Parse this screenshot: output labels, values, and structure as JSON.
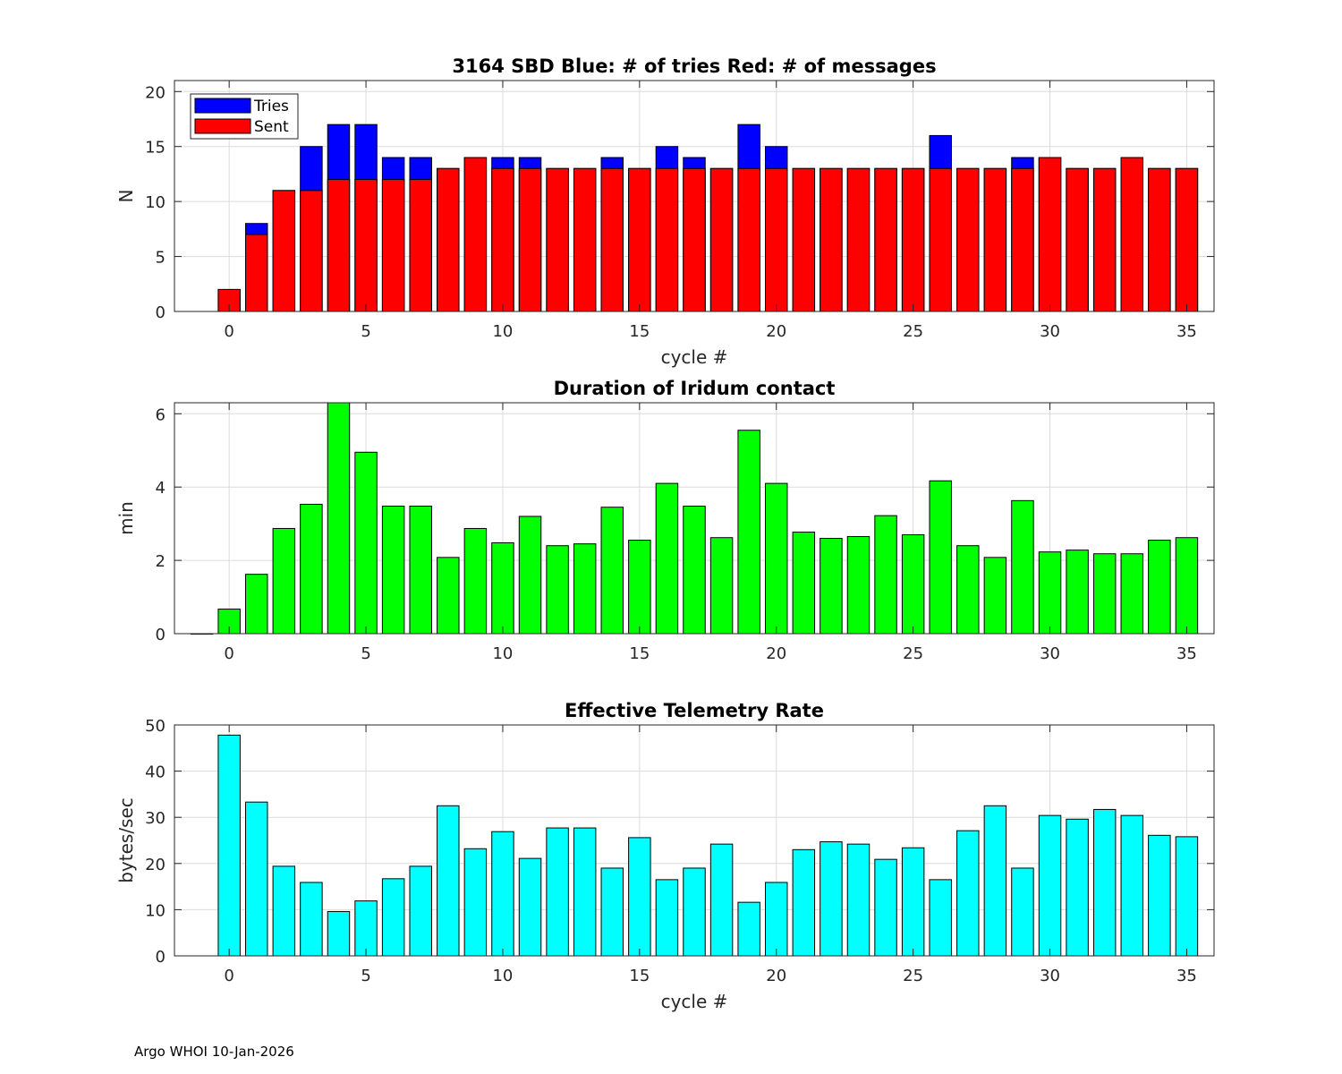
{
  "footer": "Argo WHOI 10-Jan-2026",
  "chart_data": [
    {
      "type": "bar",
      "stacked_overlay": true,
      "title": "3164 SBD  Blue: # of tries   Red: # of messages",
      "xlabel": "cycle #",
      "ylabel": "N",
      "xlim": [
        -2,
        36
      ],
      "ylim": [
        0,
        21
      ],
      "xticks": [
        0,
        5,
        10,
        15,
        20,
        25,
        30,
        35
      ],
      "yticks": [
        0,
        5,
        10,
        15,
        20
      ],
      "grid": true,
      "legend": "top-left",
      "x": [
        0,
        1,
        2,
        3,
        4,
        5,
        6,
        7,
        8,
        9,
        10,
        11,
        12,
        13,
        14,
        15,
        16,
        17,
        18,
        19,
        20,
        21,
        22,
        23,
        24,
        25,
        26,
        27,
        28,
        29,
        30,
        31,
        32,
        33,
        34,
        35
      ],
      "series": [
        {
          "name": "Tries",
          "color": "#0000ff",
          "values": [
            2,
            8,
            11,
            15,
            17,
            17,
            14,
            14,
            13,
            14,
            14,
            14,
            13,
            13,
            14,
            13,
            15,
            14,
            13,
            17,
            15,
            13,
            13,
            13,
            13,
            13,
            16,
            13,
            13,
            14,
            14,
            13,
            13,
            14,
            13,
            13
          ]
        },
        {
          "name": "Sent",
          "color": "#ff0000",
          "values": [
            2,
            7,
            11,
            11,
            12,
            12,
            12,
            12,
            13,
            14,
            13,
            13,
            13,
            13,
            13,
            13,
            13,
            13,
            13,
            13,
            13,
            13,
            13,
            13,
            13,
            13,
            13,
            13,
            13,
            13,
            14,
            13,
            13,
            14,
            13,
            13
          ]
        }
      ]
    },
    {
      "type": "bar",
      "title": "Duration of Iridum contact",
      "xlabel": "",
      "ylabel": "min",
      "xlim": [
        -2,
        36
      ],
      "ylim": [
        0,
        6.3
      ],
      "xticks": [
        0,
        5,
        10,
        15,
        20,
        25,
        30,
        35
      ],
      "yticks": [
        0,
        2,
        4,
        6
      ],
      "grid": true,
      "x": [
        -1,
        0,
        1,
        2,
        3,
        4,
        5,
        6,
        7,
        8,
        9,
        10,
        11,
        12,
        13,
        14,
        15,
        16,
        17,
        18,
        19,
        20,
        21,
        22,
        23,
        24,
        25,
        26,
        27,
        28,
        29,
        30,
        31,
        32,
        33,
        34,
        35
      ],
      "series": [
        {
          "name": "Duration",
          "color": "#00ff00",
          "values": [
            0,
            0.67,
            1.62,
            2.87,
            3.53,
            6.3,
            4.95,
            3.48,
            3.48,
            2.08,
            2.87,
            2.48,
            3.2,
            2.4,
            2.45,
            3.45,
            2.55,
            4.1,
            3.48,
            2.62,
            5.55,
            4.1,
            2.77,
            2.6,
            2.65,
            3.22,
            2.7,
            4.17,
            2.4,
            2.08,
            3.63,
            2.23,
            2.28,
            2.18,
            2.18,
            2.55,
            2.62
          ]
        }
      ]
    },
    {
      "type": "bar",
      "title": "Effective Telemetry Rate",
      "xlabel": "cycle #",
      "ylabel": "bytes/sec",
      "xlim": [
        -2,
        36
      ],
      "ylim": [
        0,
        50
      ],
      "xticks": [
        0,
        5,
        10,
        15,
        20,
        25,
        30,
        35
      ],
      "yticks": [
        0,
        10,
        20,
        30,
        40,
        50
      ],
      "grid": true,
      "x": [
        0,
        1,
        2,
        3,
        4,
        5,
        6,
        7,
        8,
        9,
        10,
        11,
        12,
        13,
        14,
        15,
        16,
        17,
        18,
        19,
        20,
        21,
        22,
        23,
        24,
        25,
        26,
        27,
        28,
        29,
        30,
        31,
        32,
        33,
        34,
        35
      ],
      "series": [
        {
          "name": "Rate",
          "color": "#00ffff",
          "values": [
            47.8,
            33.3,
            19.4,
            15.9,
            9.6,
            11.9,
            16.7,
            19.4,
            32.5,
            23.2,
            26.9,
            21.1,
            27.7,
            27.7,
            19.0,
            25.6,
            16.5,
            19.0,
            24.2,
            11.6,
            15.9,
            23.0,
            24.7,
            24.2,
            20.9,
            23.4,
            16.5,
            27.1,
            32.5,
            19.0,
            30.4,
            29.6,
            31.7,
            30.4,
            26.1,
            25.8
          ]
        }
      ]
    }
  ]
}
